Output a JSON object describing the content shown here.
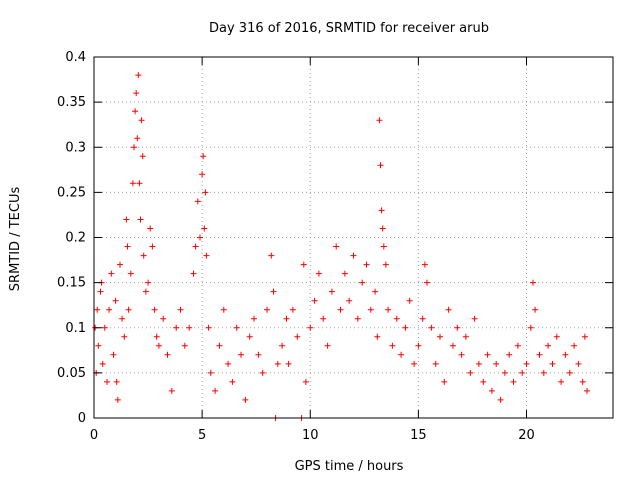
{
  "chart_data": {
    "type": "scatter",
    "title": "Day 316 of 2016, SRMTID for receiver arub",
    "xlabel": "GPS time / hours",
    "ylabel": "SRMTID / TECUs",
    "xlim": [
      0,
      24
    ],
    "ylim": [
      0,
      0.4
    ],
    "x_ticks": [
      0,
      5,
      10,
      15,
      20
    ],
    "x_tick_labels": [
      "0",
      "5",
      "10",
      "15",
      "20"
    ],
    "y_ticks": [
      0,
      0.05,
      0.1,
      0.15,
      0.2,
      0.25,
      0.3,
      0.35,
      0.4
    ],
    "y_tick_labels": [
      "0",
      "0.05",
      "0.1",
      "0.15",
      "0.2",
      "0.25",
      "0.3",
      "0.35",
      "0.4"
    ],
    "grid": true,
    "marker": "plus",
    "marker_color": "#ff0000",
    "x_coverage": [
      0,
      22.8
    ],
    "series": [
      {
        "name": "SRMTID",
        "points": [
          [
            0.05,
            0.1
          ],
          [
            0.1,
            0.05
          ],
          [
            0.15,
            0.12
          ],
          [
            0.2,
            0.08
          ],
          [
            0.3,
            0.14
          ],
          [
            0.35,
            0.15
          ],
          [
            0.4,
            0.06
          ],
          [
            0.5,
            0.1
          ],
          [
            0.6,
            0.04
          ],
          [
            0.7,
            0.12
          ],
          [
            0.8,
            0.16
          ],
          [
            0.9,
            0.07
          ],
          [
            1.0,
            0.13
          ],
          [
            1.05,
            0.04
          ],
          [
            1.1,
            0.02
          ],
          [
            1.2,
            0.17
          ],
          [
            1.3,
            0.11
          ],
          [
            1.4,
            0.09
          ],
          [
            1.5,
            0.22
          ],
          [
            1.55,
            0.19
          ],
          [
            1.6,
            0.12
          ],
          [
            1.7,
            0.16
          ],
          [
            1.8,
            0.26
          ],
          [
            1.85,
            0.3
          ],
          [
            1.9,
            0.34
          ],
          [
            1.95,
            0.36
          ],
          [
            2.0,
            0.31
          ],
          [
            2.05,
            0.38
          ],
          [
            2.1,
            0.26
          ],
          [
            2.15,
            0.22
          ],
          [
            2.2,
            0.33
          ],
          [
            2.25,
            0.29
          ],
          [
            2.3,
            0.18
          ],
          [
            2.4,
            0.14
          ],
          [
            2.5,
            0.15
          ],
          [
            2.6,
            0.21
          ],
          [
            2.7,
            0.19
          ],
          [
            2.8,
            0.12
          ],
          [
            2.9,
            0.09
          ],
          [
            3.0,
            0.08
          ],
          [
            3.2,
            0.11
          ],
          [
            3.4,
            0.07
          ],
          [
            3.6,
            0.03
          ],
          [
            3.8,
            0.1
          ],
          [
            4.0,
            0.12
          ],
          [
            4.2,
            0.08
          ],
          [
            4.4,
            0.1
          ],
          [
            4.6,
            0.16
          ],
          [
            4.7,
            0.19
          ],
          [
            4.8,
            0.24
          ],
          [
            4.9,
            0.2
          ],
          [
            5.0,
            0.27
          ],
          [
            5.05,
            0.29
          ],
          [
            5.1,
            0.21
          ],
          [
            5.15,
            0.25
          ],
          [
            5.2,
            0.18
          ],
          [
            5.3,
            0.1
          ],
          [
            5.4,
            0.05
          ],
          [
            5.6,
            0.03
          ],
          [
            5.8,
            0.08
          ],
          [
            6.0,
            0.12
          ],
          [
            6.2,
            0.06
          ],
          [
            6.4,
            0.04
          ],
          [
            6.6,
            0.1
          ],
          [
            6.8,
            0.07
          ],
          [
            7.0,
            0.02
          ],
          [
            7.2,
            0.09
          ],
          [
            7.4,
            0.11
          ],
          [
            7.6,
            0.07
          ],
          [
            7.8,
            0.05
          ],
          [
            8.0,
            0.12
          ],
          [
            8.2,
            0.18
          ],
          [
            8.3,
            0.14
          ],
          [
            8.4,
            0.0
          ],
          [
            8.5,
            0.06
          ],
          [
            8.7,
            0.08
          ],
          [
            8.9,
            0.11
          ],
          [
            9.0,
            0.06
          ],
          [
            9.2,
            0.12
          ],
          [
            9.4,
            0.09
          ],
          [
            9.6,
            0.0
          ],
          [
            9.7,
            0.17
          ],
          [
            9.8,
            0.04
          ],
          [
            10.0,
            0.1
          ],
          [
            10.2,
            0.13
          ],
          [
            10.4,
            0.16
          ],
          [
            10.6,
            0.11
          ],
          [
            10.8,
            0.08
          ],
          [
            11.0,
            0.14
          ],
          [
            11.2,
            0.19
          ],
          [
            11.4,
            0.12
          ],
          [
            11.6,
            0.16
          ],
          [
            11.8,
            0.13
          ],
          [
            12.0,
            0.18
          ],
          [
            12.2,
            0.11
          ],
          [
            12.4,
            0.15
          ],
          [
            12.6,
            0.17
          ],
          [
            12.8,
            0.12
          ],
          [
            13.0,
            0.14
          ],
          [
            13.1,
            0.09
          ],
          [
            13.2,
            0.33
          ],
          [
            13.25,
            0.28
          ],
          [
            13.3,
            0.23
          ],
          [
            13.35,
            0.21
          ],
          [
            13.4,
            0.19
          ],
          [
            13.5,
            0.17
          ],
          [
            13.6,
            0.12
          ],
          [
            13.8,
            0.08
          ],
          [
            14.0,
            0.11
          ],
          [
            14.2,
            0.07
          ],
          [
            14.4,
            0.1
          ],
          [
            14.6,
            0.13
          ],
          [
            14.8,
            0.06
          ],
          [
            15.0,
            0.08
          ],
          [
            15.2,
            0.11
          ],
          [
            15.3,
            0.17
          ],
          [
            15.4,
            0.15
          ],
          [
            15.6,
            0.1
          ],
          [
            15.8,
            0.06
          ],
          [
            16.0,
            0.09
          ],
          [
            16.2,
            0.04
          ],
          [
            16.4,
            0.12
          ],
          [
            16.6,
            0.08
          ],
          [
            16.8,
            0.1
          ],
          [
            17.0,
            0.07
          ],
          [
            17.2,
            0.09
          ],
          [
            17.4,
            0.05
          ],
          [
            17.6,
            0.11
          ],
          [
            17.8,
            0.06
          ],
          [
            18.0,
            0.04
          ],
          [
            18.2,
            0.07
          ],
          [
            18.4,
            0.03
          ],
          [
            18.6,
            0.06
          ],
          [
            18.8,
            0.02
          ],
          [
            19.0,
            0.05
          ],
          [
            19.2,
            0.07
          ],
          [
            19.4,
            0.04
          ],
          [
            19.6,
            0.08
          ],
          [
            19.8,
            0.05
          ],
          [
            20.0,
            0.06
          ],
          [
            20.2,
            0.1
          ],
          [
            20.3,
            0.15
          ],
          [
            20.4,
            0.12
          ],
          [
            20.6,
            0.07
          ],
          [
            20.8,
            0.05
          ],
          [
            21.0,
            0.08
          ],
          [
            21.2,
            0.06
          ],
          [
            21.4,
            0.09
          ],
          [
            21.6,
            0.04
          ],
          [
            21.8,
            0.07
          ],
          [
            22.0,
            0.05
          ],
          [
            22.2,
            0.08
          ],
          [
            22.4,
            0.06
          ],
          [
            22.6,
            0.04
          ],
          [
            22.7,
            0.09
          ],
          [
            22.8,
            0.03
          ]
        ]
      }
    ]
  }
}
